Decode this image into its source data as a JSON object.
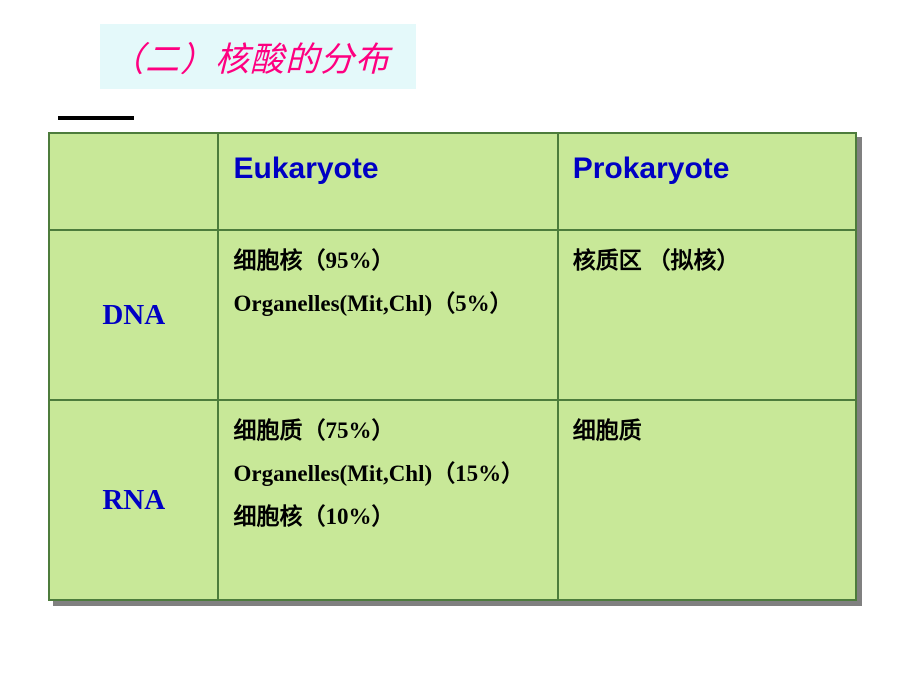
{
  "title": "（二）核酸的分布",
  "table": {
    "background_color": "#c8e898",
    "border_color": "#4d7c3c",
    "shadow_color": "#808080",
    "header_text_color": "#0000c4",
    "body_text_color": "#000000",
    "columns": {
      "blank": "",
      "eukaryote": "Eukaryote",
      "prokaryote": "Prokaryote"
    },
    "rows": {
      "dna": {
        "label": "DNA",
        "eukaryote_line1": "细胞核（95%）",
        "eukaryote_line2": "Organelles(Mit,Chl)（5%）",
        "prokaryote_line1": "核质区 （拟核）"
      },
      "rna": {
        "label": "RNA",
        "eukaryote_line1": "细胞质（75%）",
        "eukaryote_line2": "Organelles(Mit,Chl)（15%）",
        "eukaryote_line3": "细胞核（10%）",
        "prokaryote_line1": "细胞质"
      }
    }
  },
  "styling": {
    "title_bg": "#e4f9fa",
    "title_color": "#fe0080",
    "title_fontsize": 34,
    "underline_color": "#000000",
    "header_fontsize": 30,
    "rowheader_fontsize": 29,
    "cell_fontsize": 23
  }
}
